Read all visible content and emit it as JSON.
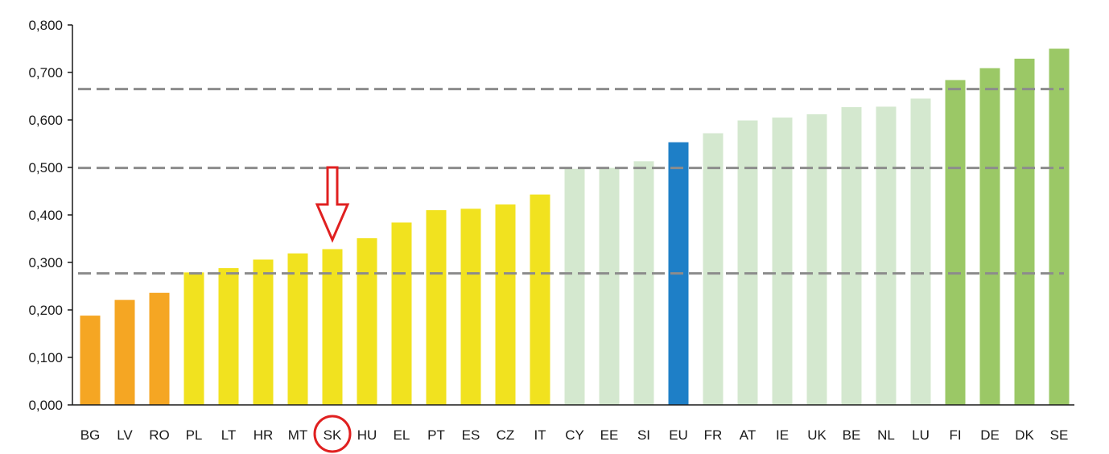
{
  "chart_data": {
    "type": "bar",
    "categories": [
      "BG",
      "LV",
      "RO",
      "PL",
      "LT",
      "HR",
      "MT",
      "SK",
      "HU",
      "EL",
      "PT",
      "ES",
      "CZ",
      "IT",
      "CY",
      "EE",
      "SI",
      "EU",
      "FR",
      "AT",
      "IE",
      "UK",
      "BE",
      "NL",
      "LU",
      "FI",
      "DE",
      "DK",
      "SE"
    ],
    "values": [
      0.188,
      0.221,
      0.236,
      0.279,
      0.288,
      0.306,
      0.319,
      0.328,
      0.351,
      0.384,
      0.41,
      0.413,
      0.422,
      0.443,
      0.497,
      0.499,
      0.513,
      0.553,
      0.572,
      0.599,
      0.605,
      0.612,
      0.627,
      0.628,
      0.645,
      0.684,
      0.709,
      0.729,
      0.75
    ],
    "bar_colors": [
      "#f5a623",
      "#f5a623",
      "#f5a623",
      "#f1e21f",
      "#f1e21f",
      "#f1e21f",
      "#f1e21f",
      "#f1e21f",
      "#f1e21f",
      "#f1e21f",
      "#f1e21f",
      "#f1e21f",
      "#f1e21f",
      "#f1e21f",
      "#d4e8cf",
      "#d4e8cf",
      "#d4e8cf",
      "#1e7fc7",
      "#d4e8cf",
      "#d4e8cf",
      "#d4e8cf",
      "#d4e8cf",
      "#d4e8cf",
      "#d4e8cf",
      "#d4e8cf",
      "#9bc866",
      "#9bc866",
      "#9bc866",
      "#9bc866"
    ],
    "yticks": [
      "0,000",
      "0,100",
      "0,200",
      "0,300",
      "0,400",
      "0,500",
      "0,600",
      "0,700",
      "0,800"
    ],
    "ylim": [
      0,
      0.8
    ],
    "reference_lines": [
      0.277,
      0.499,
      0.665
    ],
    "reference_line_color": "#8c8c8c",
    "highlight_category": "SK",
    "highlight_color": "#e02020",
    "title": "",
    "xlabel": "",
    "ylabel": "",
    "grid": false
  }
}
